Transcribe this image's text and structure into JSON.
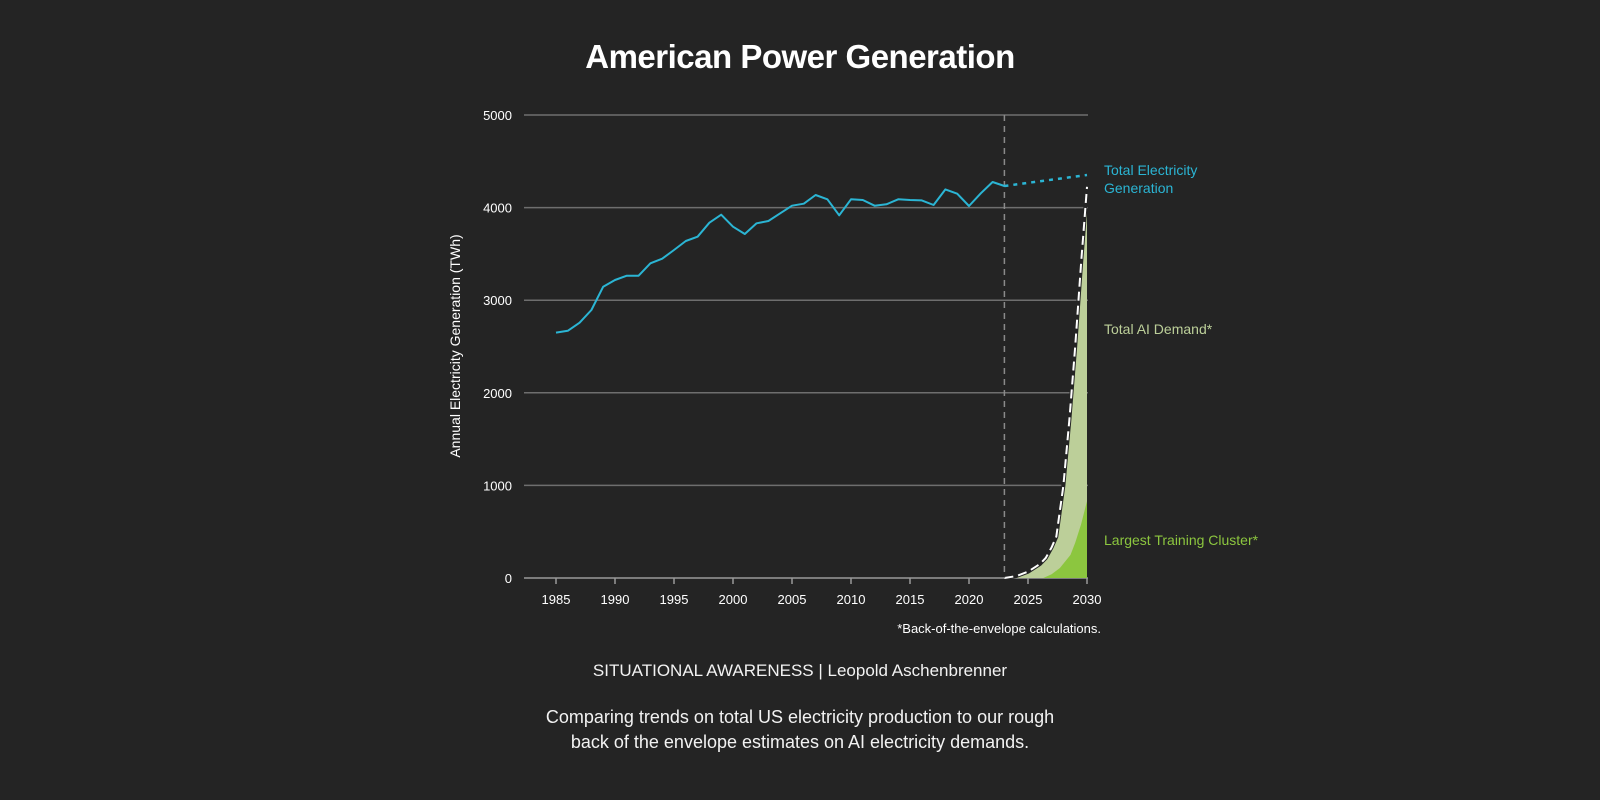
{
  "page": {
    "title": "American Power Generation",
    "credit": "SITUATIONAL AWARENESS | Leopold Aschenbrenner",
    "caption_lines": [
      "Comparing trends on total US electricity production to our rough",
      "back of the envelope estimates on AI electricity demands."
    ]
  },
  "colors": {
    "background": "#242424",
    "generation": "#2bb5d4",
    "ai_demand": "#bccf99",
    "training_cluster": "#8cc63f",
    "grid": "#6e6e6e",
    "text": "#ffffff"
  },
  "chart_data": {
    "type": "line",
    "title": "American Power Generation",
    "xlabel": "",
    "ylabel": "Annual Electricity Generation (TWh)",
    "xlim": [
      1985,
      2030
    ],
    "ylim": [
      0,
      5000
    ],
    "xticks": [
      1985,
      1990,
      1995,
      2000,
      2005,
      2010,
      2015,
      2020,
      2025,
      2030
    ],
    "yticks": [
      0,
      1000,
      2000,
      3000,
      4000,
      5000
    ],
    "grid": "horizontal",
    "divider_year": 2023,
    "footnote": "*Back-of-the-envelope calculations.",
    "series": [
      {
        "name": "Total Electricity Generation",
        "label_lines": [
          "Total Electricity",
          "Generation"
        ],
        "style": "solid-line",
        "x": [
          1985,
          1986,
          1987,
          1988,
          1989,
          1990,
          1991,
          1992,
          1993,
          1994,
          1995,
          1996,
          1997,
          1998,
          1999,
          2000,
          2001,
          2002,
          2003,
          2004,
          2005,
          2006,
          2007,
          2008,
          2009,
          2010,
          2011,
          2012,
          2013,
          2014,
          2015,
          2016,
          2017,
          2018,
          2019,
          2020,
          2021,
          2022,
          2023
        ],
        "values": [
          2650,
          2670,
          2757,
          2894,
          3146,
          3218,
          3265,
          3265,
          3398,
          3448,
          3542,
          3639,
          3686,
          3837,
          3923,
          3794,
          3715,
          3830,
          3855,
          3938,
          4021,
          4042,
          4136,
          4090,
          3917,
          4090,
          4082,
          4021,
          4036,
          4090,
          4082,
          4078,
          4028,
          4197,
          4150,
          4017,
          4154,
          4276,
          4233
        ]
      },
      {
        "name": "Total Electricity Generation (projection)",
        "style": "dotted-line",
        "x": [
          2023,
          2030
        ],
        "values": [
          4233,
          4352
        ]
      },
      {
        "name": "Total AI Demand*",
        "label_lines": [
          "Total AI Demand*"
        ],
        "style": "area-dashed-outline",
        "x": [
          2023,
          2024,
          2025,
          2026,
          2026.5,
          2027,
          2027.4,
          2028,
          2028.5,
          2029,
          2029.5,
          2030
        ],
        "values": [
          0,
          20,
          68,
          150,
          216,
          330,
          446,
          1000,
          1700,
          2500,
          3400,
          4225
        ]
      },
      {
        "name": "Largest Training Cluster*",
        "label_lines": [
          "Largest Training Cluster*"
        ],
        "style": "area",
        "x": [
          2026.3,
          2027,
          2027.7,
          2028.6,
          2029,
          2029.5,
          2030
        ],
        "values": [
          0,
          40,
          108,
          250,
          380,
          580,
          830
        ]
      }
    ]
  }
}
